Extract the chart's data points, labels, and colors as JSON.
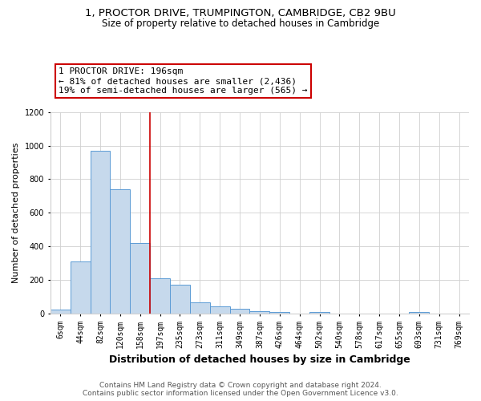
{
  "title_line1": "1, PROCTOR DRIVE, TRUMPINGTON, CAMBRIDGE, CB2 9BU",
  "title_line2": "Size of property relative to detached houses in Cambridge",
  "xlabel": "Distribution of detached houses by size in Cambridge",
  "ylabel": "Number of detached properties",
  "footer_line1": "Contains HM Land Registry data © Crown copyright and database right 2024.",
  "footer_line2": "Contains public sector information licensed under the Open Government Licence v3.0.",
  "bar_labels": [
    "6sqm",
    "44sqm",
    "82sqm",
    "120sqm",
    "158sqm",
    "197sqm",
    "235sqm",
    "273sqm",
    "311sqm",
    "349sqm",
    "387sqm",
    "426sqm",
    "464sqm",
    "502sqm",
    "540sqm",
    "578sqm",
    "617sqm",
    "655sqm",
    "693sqm",
    "731sqm",
    "769sqm"
  ],
  "bar_values": [
    25,
    310,
    970,
    740,
    420,
    210,
    170,
    65,
    42,
    28,
    12,
    10,
    0,
    10,
    0,
    0,
    0,
    0,
    10,
    0,
    0
  ],
  "bar_color": "#c6d9ec",
  "bar_edge_color": "#5b9bd5",
  "vline_x": 4.5,
  "vline_color": "#cc0000",
  "annotation_line1": "1 PROCTOR DRIVE: 196sqm",
  "annotation_line2": "← 81% of detached houses are smaller (2,436)",
  "annotation_line3": "19% of semi-detached houses are larger (565) →",
  "annotation_box_color": "#ffffff",
  "annotation_box_edge": "#cc0000",
  "ylim": [
    0,
    1200
  ],
  "yticks": [
    0,
    200,
    400,
    600,
    800,
    1000,
    1200
  ],
  "grid_color": "#d0d0d0",
  "background_color": "#ffffff",
  "title_fontsize": 9.5,
  "subtitle_fontsize": 8.5,
  "xlabel_fontsize": 9,
  "ylabel_fontsize": 8,
  "tick_fontsize": 7,
  "footer_fontsize": 6.5,
  "annotation_fontsize": 8
}
